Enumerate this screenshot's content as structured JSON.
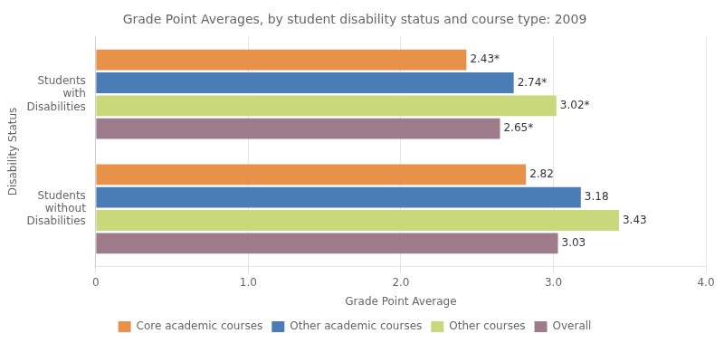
{
  "chart_data": {
    "type": "bar",
    "orientation": "horizontal",
    "title": "Grade Point Averages, by student disability status and course type: 2009",
    "xlabel": "Grade Point Average",
    "ylabel": "Disability Status",
    "categories": [
      "Students\nwith\nDisabilities",
      "Students\nwithout\nDisabilities"
    ],
    "series": [
      {
        "name": "Core academic courses",
        "color": "#E8914A",
        "values": [
          2.43,
          2.82
        ],
        "value_labels": [
          "2.43*",
          "2.82"
        ]
      },
      {
        "name": "Other academic courses",
        "color": "#4A7CB5",
        "values": [
          2.74,
          3.18
        ],
        "value_labels": [
          "2.74*",
          "3.18"
        ]
      },
      {
        "name": "Other courses",
        "color": "#C8D87A",
        "values": [
          3.02,
          3.43
        ],
        "value_labels": [
          "3.02*",
          "3.43"
        ]
      },
      {
        "name": "Overall",
        "color": "#9E7B8A",
        "values": [
          2.65,
          3.03
        ],
        "value_labels": [
          "2.65*",
          "3.03"
        ]
      }
    ],
    "xlim": [
      0,
      4.0
    ],
    "xticks": [
      0,
      {
        "value": 1.0,
        "label": "1.0"
      },
      {
        "value": 2.0,
        "label": "2.0"
      },
      {
        "value": 3.0,
        "label": "3.0"
      },
      {
        "value": 4.0,
        "label": "4.0"
      }
    ],
    "grid": true,
    "legend": "bottom",
    "data_labels": true
  }
}
